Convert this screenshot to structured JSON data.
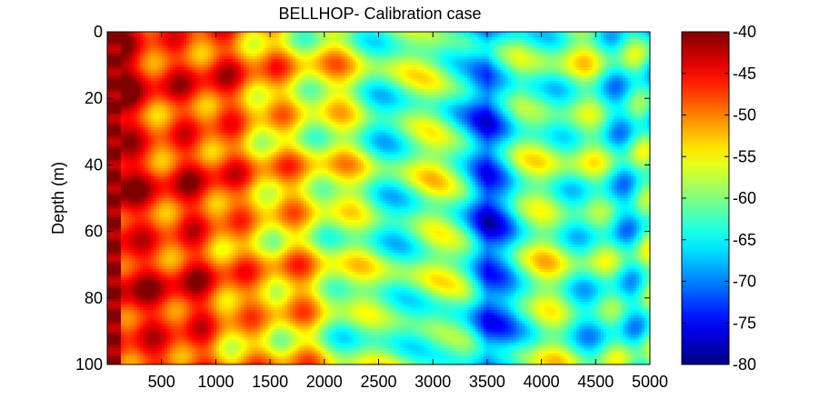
{
  "chart_data": {
    "type": "heatmap",
    "title": "BELLHOP- Calibration  case",
    "xlabel": "",
    "ylabel": "Depth (m)",
    "xlim": [
      0,
      5000
    ],
    "ylim": [
      0,
      100
    ],
    "y_reversed": true,
    "x_ticks": [
      "500",
      "1000",
      "1500",
      "2000",
      "2500",
      "3000",
      "3500",
      "4000",
      "4500",
      "5000"
    ],
    "y_ticks": [
      "0",
      "20",
      "40",
      "60",
      "80",
      "100"
    ],
    "colorbar": {
      "colormap": "jet",
      "range": [
        -80,
        -40
      ],
      "ticks": [
        "-40",
        "-45",
        "-50",
        "-55",
        "-60",
        "-65",
        "-70",
        "-75",
        "-80"
      ]
    },
    "field_trend": {
      "range_m": [
        0,
        200,
        500,
        1000,
        1500,
        2000,
        2500,
        3000,
        3300,
        3500,
        3800,
        4000,
        4500,
        5000
      ],
      "mean_level_db": [
        -42,
        -44,
        -46,
        -49,
        -51,
        -57,
        -60,
        -61,
        -64,
        -70,
        -62,
        -61,
        -62,
        -63
      ]
    },
    "colors": {
      "jet": [
        "#00008f",
        "#0000ff",
        "#0080ff",
        "#00ffff",
        "#80ff80",
        "#ffff00",
        "#ff8000",
        "#ff0000",
        "#800000"
      ]
    }
  }
}
